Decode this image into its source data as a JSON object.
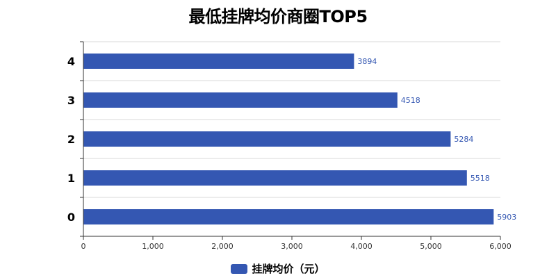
{
  "chart_data": {
    "type": "bar",
    "orientation": "horizontal",
    "title": "最低挂牌均价商圈TOP5",
    "categories": [
      "0",
      "1",
      "2",
      "3",
      "4"
    ],
    "series": [
      {
        "name": "挂牌均价（元）",
        "values": [
          5903,
          5518,
          5284,
          4518,
          3894
        ]
      }
    ],
    "xlim": [
      0,
      6000
    ],
    "x_ticks": [
      0,
      1000,
      2000,
      3000,
      4000,
      5000,
      6000
    ],
    "x_tick_labels": [
      "0",
      "1,000",
      "2,000",
      "3,000",
      "4,000",
      "5,000",
      "6,000"
    ],
    "grid": "horizontal lines between categories",
    "legend_position": "bottom-center",
    "data_labels": true,
    "colors": {
      "bar": "#3457b2",
      "label": "#3457b2",
      "grid": "#d9d9d9",
      "axis": "#333333"
    }
  }
}
